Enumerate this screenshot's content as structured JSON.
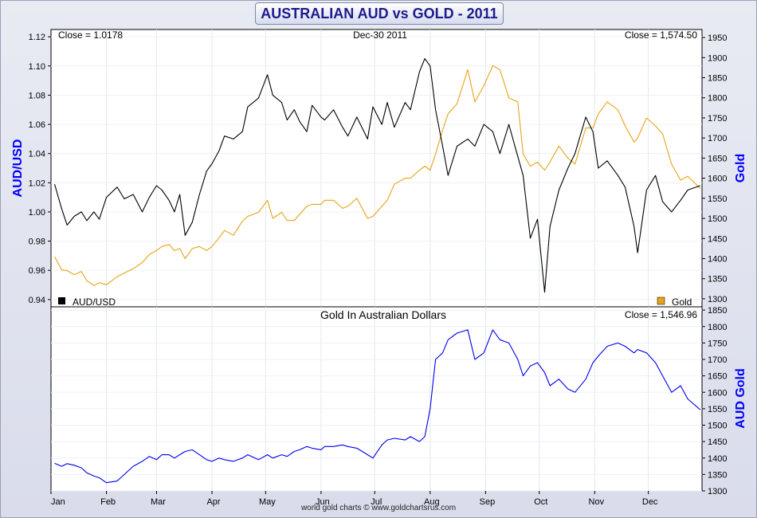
{
  "title": "AUSTRALIAN AUD vs GOLD - 2011",
  "footer": "world gold charts © www.goldchartsrus.com",
  "colors": {
    "aud": "#000000",
    "gold": "#e8a317",
    "aud_gold": "#0000ee",
    "axis_label": "#0000ff"
  },
  "chart_data": [
    {
      "type": "line",
      "date_label": "Dec-30  2011",
      "left_close": "Close = 1.0178",
      "right_close": "Close = 1,574.50",
      "ylabel_left": "AUD/USD",
      "ylabel_right": "Gold",
      "ylim_left": [
        0.935,
        1.125
      ],
      "ylim_right": [
        1280,
        1970
      ],
      "yticks_left": [
        "0.94",
        "0.96",
        "0.98",
        "1.00",
        "1.02",
        "1.04",
        "1.06",
        "1.08",
        "1.10",
        "1.12"
      ],
      "yticks_right": [
        "1300",
        "1350",
        "1400",
        "1450",
        "1500",
        "1550",
        "1600",
        "1650",
        "1700",
        "1750",
        "1800",
        "1850",
        "1900",
        "1950"
      ],
      "legend": {
        "left": "AUD/USD",
        "right": "Gold"
      },
      "x_months": [
        "Jan",
        "Feb",
        "Mar",
        "Apr",
        "May",
        "Jun",
        "Jul",
        "Aug",
        "Sep",
        "Oct",
        "Nov",
        "Dec"
      ],
      "series": [
        {
          "name": "AUD/USD",
          "axis": "left",
          "x": [
            "2011-01-03",
            "2011-01-07",
            "2011-01-10",
            "2011-01-14",
            "2011-01-18",
            "2011-01-21",
            "2011-01-25",
            "2011-01-28",
            "2011-02-01",
            "2011-02-07",
            "2011-02-11",
            "2011-02-16",
            "2011-02-21",
            "2011-02-25",
            "2011-03-01",
            "2011-03-04",
            "2011-03-08",
            "2011-03-11",
            "2011-03-14",
            "2011-03-17",
            "2011-03-21",
            "2011-03-25",
            "2011-03-29",
            "2011-04-01",
            "2011-04-05",
            "2011-04-08",
            "2011-04-13",
            "2011-04-18",
            "2011-04-21",
            "2011-04-27",
            "2011-05-02",
            "2011-05-05",
            "2011-05-10",
            "2011-05-13",
            "2011-05-17",
            "2011-05-20",
            "2011-05-24",
            "2011-05-27",
            "2011-06-01",
            "2011-06-03",
            "2011-06-08",
            "2011-06-13",
            "2011-06-16",
            "2011-06-21",
            "2011-06-27",
            "2011-06-30",
            "2011-07-05",
            "2011-07-08",
            "2011-07-12",
            "2011-07-18",
            "2011-07-21",
            "2011-07-26",
            "2011-07-29",
            "2011-08-01",
            "2011-08-04",
            "2011-08-08",
            "2011-08-11",
            "2011-08-16",
            "2011-08-22",
            "2011-08-26",
            "2011-08-31",
            "2011-09-05",
            "2011-09-09",
            "2011-09-14",
            "2011-09-19",
            "2011-09-22",
            "2011-09-26",
            "2011-09-30",
            "2011-10-04",
            "2011-10-07",
            "2011-10-12",
            "2011-10-17",
            "2011-10-21",
            "2011-10-27",
            "2011-10-31",
            "2011-11-03",
            "2011-11-08",
            "2011-11-14",
            "2011-11-18",
            "2011-11-23",
            "2011-11-25",
            "2011-11-30",
            "2011-12-05",
            "2011-12-09",
            "2011-12-14",
            "2011-12-19",
            "2011-12-23",
            "2011-12-30"
          ],
          "values": [
            1.019,
            1.002,
            0.991,
            0.997,
            1.0,
            0.994,
            1.0,
            0.995,
            1.01,
            1.017,
            1.009,
            1.012,
            1.0,
            1.01,
            1.018,
            1.015,
            1.008,
            1.0,
            1.012,
            0.984,
            0.993,
            1.012,
            1.028,
            1.033,
            1.042,
            1.052,
            1.05,
            1.055,
            1.072,
            1.078,
            1.094,
            1.08,
            1.075,
            1.063,
            1.07,
            1.062,
            1.055,
            1.073,
            1.065,
            1.063,
            1.07,
            1.058,
            1.052,
            1.065,
            1.05,
            1.072,
            1.06,
            1.075,
            1.058,
            1.075,
            1.07,
            1.096,
            1.105,
            1.1,
            1.07,
            1.045,
            1.025,
            1.045,
            1.05,
            1.045,
            1.06,
            1.055,
            1.04,
            1.06,
            1.038,
            1.025,
            0.982,
            0.995,
            0.945,
            0.99,
            1.015,
            1.03,
            1.04,
            1.065,
            1.055,
            1.03,
            1.035,
            1.025,
            1.017,
            0.99,
            0.972,
            1.015,
            1.025,
            1.007,
            1.0,
            1.008,
            1.015,
            1.018
          ]
        },
        {
          "name": "Gold",
          "axis": "right",
          "x": [
            "2011-01-03",
            "2011-01-07",
            "2011-01-10",
            "2011-01-14",
            "2011-01-18",
            "2011-01-21",
            "2011-01-25",
            "2011-01-28",
            "2011-02-01",
            "2011-02-07",
            "2011-02-11",
            "2011-02-16",
            "2011-02-21",
            "2011-02-25",
            "2011-03-01",
            "2011-03-04",
            "2011-03-08",
            "2011-03-11",
            "2011-03-14",
            "2011-03-17",
            "2011-03-21",
            "2011-03-25",
            "2011-03-29",
            "2011-04-01",
            "2011-04-05",
            "2011-04-08",
            "2011-04-13",
            "2011-04-18",
            "2011-04-21",
            "2011-04-27",
            "2011-05-02",
            "2011-05-05",
            "2011-05-10",
            "2011-05-13",
            "2011-05-17",
            "2011-05-20",
            "2011-05-24",
            "2011-05-27",
            "2011-06-01",
            "2011-06-03",
            "2011-06-08",
            "2011-06-13",
            "2011-06-16",
            "2011-06-21",
            "2011-06-27",
            "2011-06-30",
            "2011-07-05",
            "2011-07-08",
            "2011-07-12",
            "2011-07-18",
            "2011-07-21",
            "2011-07-26",
            "2011-07-29",
            "2011-08-01",
            "2011-08-04",
            "2011-08-08",
            "2011-08-11",
            "2011-08-16",
            "2011-08-22",
            "2011-08-26",
            "2011-08-31",
            "2011-09-05",
            "2011-09-09",
            "2011-09-14",
            "2011-09-19",
            "2011-09-22",
            "2011-09-26",
            "2011-09-30",
            "2011-10-04",
            "2011-10-07",
            "2011-10-12",
            "2011-10-17",
            "2011-10-21",
            "2011-10-27",
            "2011-10-31",
            "2011-11-03",
            "2011-11-08",
            "2011-11-14",
            "2011-11-18",
            "2011-11-23",
            "2011-11-25",
            "2011-11-30",
            "2011-12-05",
            "2011-12-09",
            "2011-12-14",
            "2011-12-19",
            "2011-12-23",
            "2011-12-30"
          ],
          "values": [
            1405,
            1372,
            1370,
            1360,
            1368,
            1345,
            1333,
            1340,
            1335,
            1355,
            1364,
            1375,
            1390,
            1410,
            1420,
            1430,
            1435,
            1420,
            1425,
            1400,
            1425,
            1430,
            1420,
            1430,
            1452,
            1470,
            1458,
            1493,
            1505,
            1515,
            1545,
            1500,
            1515,
            1495,
            1495,
            1510,
            1530,
            1535,
            1535,
            1545,
            1545,
            1525,
            1530,
            1550,
            1500,
            1505,
            1530,
            1545,
            1585,
            1600,
            1600,
            1620,
            1630,
            1620,
            1660,
            1720,
            1760,
            1785,
            1870,
            1790,
            1830,
            1880,
            1870,
            1800,
            1790,
            1660,
            1630,
            1640,
            1620,
            1640,
            1680,
            1650,
            1635,
            1725,
            1725,
            1760,
            1790,
            1770,
            1730,
            1690,
            1700,
            1750,
            1730,
            1710,
            1635,
            1595,
            1605,
            1574.5
          ]
        }
      ]
    },
    {
      "type": "line",
      "title": "Gold In Australian Dollars",
      "right_close": "Close = 1,546.96",
      "ylabel_right": "AUD Gold",
      "ylim_right": [
        1300,
        1860
      ],
      "yticks_right": [
        "1300",
        "1350",
        "1400",
        "1450",
        "1500",
        "1550",
        "1600",
        "1650",
        "1700",
        "1750",
        "1800",
        "1850"
      ],
      "x_months": [
        "Jan",
        "Feb",
        "Mar",
        "Apr",
        "May",
        "Jun",
        "Jul",
        "Aug",
        "Sep",
        "Oct",
        "Nov",
        "Dec"
      ],
      "series": [
        {
          "name": "AUD Gold",
          "axis": "right",
          "x": [
            "2011-01-03",
            "2011-01-07",
            "2011-01-10",
            "2011-01-14",
            "2011-01-18",
            "2011-01-21",
            "2011-01-25",
            "2011-01-28",
            "2011-02-01",
            "2011-02-07",
            "2011-02-11",
            "2011-02-16",
            "2011-02-21",
            "2011-02-25",
            "2011-03-01",
            "2011-03-04",
            "2011-03-08",
            "2011-03-11",
            "2011-03-14",
            "2011-03-17",
            "2011-03-21",
            "2011-03-25",
            "2011-03-29",
            "2011-04-01",
            "2011-04-05",
            "2011-04-08",
            "2011-04-13",
            "2011-04-18",
            "2011-04-21",
            "2011-04-27",
            "2011-05-02",
            "2011-05-05",
            "2011-05-10",
            "2011-05-13",
            "2011-05-17",
            "2011-05-20",
            "2011-05-24",
            "2011-05-27",
            "2011-06-01",
            "2011-06-03",
            "2011-06-08",
            "2011-06-13",
            "2011-06-16",
            "2011-06-21",
            "2011-06-27",
            "2011-06-30",
            "2011-07-05",
            "2011-07-08",
            "2011-07-12",
            "2011-07-18",
            "2011-07-21",
            "2011-07-26",
            "2011-07-29",
            "2011-08-01",
            "2011-08-04",
            "2011-08-08",
            "2011-08-11",
            "2011-08-16",
            "2011-08-22",
            "2011-08-26",
            "2011-08-31",
            "2011-09-05",
            "2011-09-09",
            "2011-09-14",
            "2011-09-19",
            "2011-09-22",
            "2011-09-26",
            "2011-09-30",
            "2011-10-04",
            "2011-10-07",
            "2011-10-12",
            "2011-10-17",
            "2011-10-21",
            "2011-10-27",
            "2011-10-31",
            "2011-11-03",
            "2011-11-08",
            "2011-11-14",
            "2011-11-18",
            "2011-11-23",
            "2011-11-25",
            "2011-11-30",
            "2011-12-05",
            "2011-12-09",
            "2011-12-14",
            "2011-12-19",
            "2011-12-23",
            "2011-12-30"
          ],
          "values": [
            1384,
            1375,
            1383,
            1378,
            1370,
            1355,
            1345,
            1340,
            1325,
            1330,
            1350,
            1375,
            1390,
            1405,
            1395,
            1410,
            1410,
            1400,
            1410,
            1420,
            1425,
            1410,
            1395,
            1390,
            1400,
            1395,
            1390,
            1400,
            1410,
            1395,
            1410,
            1400,
            1410,
            1405,
            1420,
            1425,
            1435,
            1430,
            1425,
            1435,
            1435,
            1440,
            1435,
            1430,
            1410,
            1400,
            1440,
            1455,
            1460,
            1455,
            1465,
            1450,
            1465,
            1550,
            1700,
            1720,
            1760,
            1780,
            1790,
            1700,
            1720,
            1790,
            1760,
            1750,
            1700,
            1650,
            1680,
            1690,
            1660,
            1620,
            1640,
            1610,
            1600,
            1640,
            1690,
            1710,
            1740,
            1750,
            1740,
            1720,
            1730,
            1720,
            1690,
            1650,
            1600,
            1620,
            1580,
            1546.96
          ]
        }
      ]
    }
  ]
}
